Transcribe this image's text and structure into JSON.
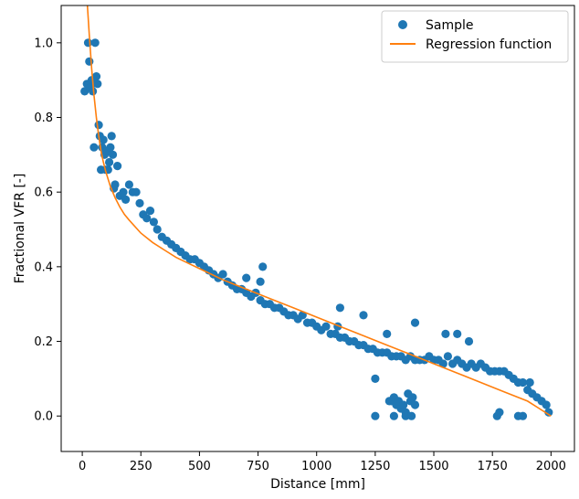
{
  "chart_data": {
    "type": "scatter",
    "title": "",
    "xlabel": "Distance [mm]",
    "ylabel": "Fractional VFR [-]",
    "xlim": [
      -90,
      2100
    ],
    "ylim": [
      -0.095,
      1.1
    ],
    "xticks": [
      0,
      250,
      500,
      750,
      1000,
      1250,
      1500,
      1750,
      2000
    ],
    "yticks": [
      0.0,
      0.2,
      0.4,
      0.6,
      0.8,
      1.0
    ],
    "xtick_labels": [
      "0",
      "250",
      "500",
      "750",
      "1000",
      "1250",
      "1500",
      "1750",
      "2000"
    ],
    "ytick_labels": [
      "0.0",
      "0.2",
      "0.4",
      "0.6",
      "0.8",
      "1.0"
    ],
    "grid": false,
    "legend": {
      "position": "top-right",
      "entries": [
        "Sample",
        "Regression function"
      ]
    },
    "colors": {
      "sample": "#1f77b4",
      "regression": "#ff7f0e"
    },
    "series": [
      {
        "name": "Sample",
        "kind": "scatter",
        "x": [
          10,
          20,
          25,
          30,
          35,
          40,
          45,
          50,
          55,
          60,
          65,
          70,
          75,
          80,
          85,
          90,
          95,
          100,
          105,
          110,
          115,
          120,
          125,
          130,
          135,
          140,
          150,
          160,
          175,
          185,
          200,
          215,
          230,
          245,
          260,
          275,
          290,
          305,
          320,
          340,
          360,
          380,
          400,
          420,
          440,
          460,
          480,
          500,
          520,
          540,
          560,
          580,
          600,
          620,
          640,
          660,
          680,
          700,
          720,
          740,
          760,
          780,
          800,
          820,
          840,
          860,
          880,
          900,
          920,
          940,
          960,
          980,
          1000,
          1020,
          1040,
          1060,
          1080,
          1100,
          1120,
          1140,
          1160,
          1180,
          1200,
          1220,
          1240,
          1260,
          1280,
          1300,
          1320,
          1340,
          1360,
          1380,
          1400,
          1420,
          1440,
          1460,
          1480,
          1500,
          1520,
          1540,
          1560,
          1580,
          1600,
          1620,
          1640,
          1660,
          1680,
          1700,
          1720,
          1740,
          1760,
          1780,
          1800,
          1820,
          1840,
          1860,
          1880,
          1900,
          1920,
          1940,
          1960,
          1980,
          1990,
          770,
          700,
          760,
          1310,
          1320,
          1330,
          1340,
          1350,
          1360,
          1370,
          1380,
          1390,
          1400,
          1410,
          1420,
          1250,
          1330,
          1380,
          1405,
          1770,
          1780,
          1860,
          1880,
          1910,
          1200,
          1300,
          1100,
          1550,
          1650,
          1090,
          1250,
          1420,
          1600
        ],
        "y": [
          0.87,
          0.89,
          1.0,
          0.95,
          0.88,
          0.9,
          0.87,
          0.72,
          1.0,
          0.91,
          0.89,
          0.78,
          0.75,
          0.66,
          0.72,
          0.74,
          0.7,
          0.66,
          0.71,
          0.66,
          0.68,
          0.72,
          0.75,
          0.7,
          0.61,
          0.62,
          0.67,
          0.59,
          0.6,
          0.58,
          0.62,
          0.6,
          0.6,
          0.57,
          0.54,
          0.53,
          0.55,
          0.52,
          0.5,
          0.48,
          0.47,
          0.46,
          0.45,
          0.44,
          0.43,
          0.42,
          0.42,
          0.41,
          0.4,
          0.39,
          0.38,
          0.37,
          0.38,
          0.36,
          0.35,
          0.34,
          0.34,
          0.33,
          0.32,
          0.33,
          0.31,
          0.3,
          0.3,
          0.29,
          0.29,
          0.28,
          0.27,
          0.27,
          0.26,
          0.27,
          0.25,
          0.25,
          0.24,
          0.23,
          0.24,
          0.22,
          0.22,
          0.21,
          0.21,
          0.2,
          0.2,
          0.19,
          0.19,
          0.18,
          0.18,
          0.17,
          0.17,
          0.17,
          0.16,
          0.16,
          0.16,
          0.15,
          0.16,
          0.15,
          0.15,
          0.15,
          0.16,
          0.15,
          0.15,
          0.14,
          0.16,
          0.14,
          0.15,
          0.14,
          0.13,
          0.14,
          0.13,
          0.14,
          0.13,
          0.12,
          0.12,
          0.12,
          0.12,
          0.11,
          0.1,
          0.09,
          0.09,
          0.07,
          0.06,
          0.05,
          0.04,
          0.03,
          0.01,
          0.4,
          0.37,
          0.36,
          0.04,
          0.04,
          0.05,
          0.03,
          0.04,
          0.02,
          0.03,
          0.01,
          0.06,
          0.04,
          0.05,
          0.03,
          0.0,
          0.0,
          0.0,
          0.0,
          0.0,
          0.01,
          0.0,
          0.0,
          0.09,
          0.27,
          0.22,
          0.29,
          0.22,
          0.2,
          0.24,
          0.1,
          0.25,
          0.22
        ]
      },
      {
        "name": "Regression function",
        "kind": "line",
        "x": [
          22,
          30,
          40,
          50,
          60,
          70,
          80,
          90,
          100,
          120,
          140,
          160,
          180,
          200,
          250,
          300,
          350,
          400,
          450,
          500,
          600,
          700,
          800,
          900,
          1000,
          1100,
          1200,
          1300,
          1400,
          1500,
          1600,
          1700,
          1800,
          1900,
          1950,
          2000
        ],
        "y": [
          1.1,
          1.02,
          0.93,
          0.86,
          0.8,
          0.75,
          0.71,
          0.68,
          0.655,
          0.615,
          0.585,
          0.56,
          0.54,
          0.525,
          0.49,
          0.465,
          0.445,
          0.425,
          0.41,
          0.395,
          0.365,
          0.34,
          0.315,
          0.29,
          0.265,
          0.24,
          0.215,
          0.19,
          0.165,
          0.14,
          0.115,
          0.09,
          0.065,
          0.04,
          0.02,
          0.0
        ]
      }
    ]
  }
}
